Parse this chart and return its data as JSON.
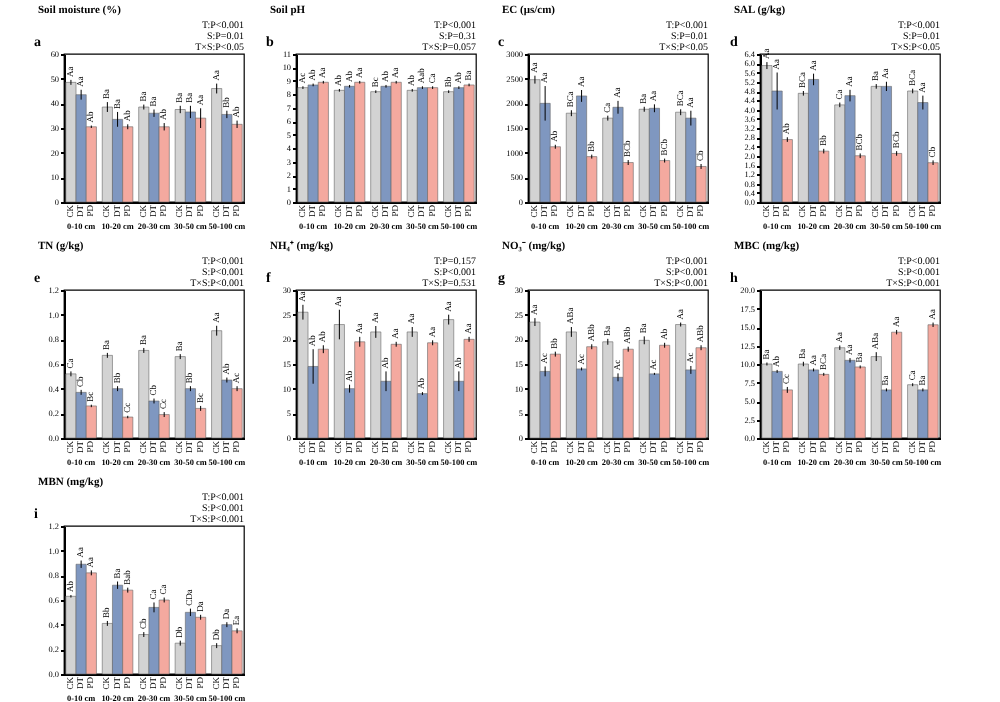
{
  "chart_data": [
    {
      "type": "bar",
      "title": "Soil moisture (%)",
      "annotations": [
        "a",
        "T:P<0.001",
        "S:P=0.01",
        "T×S:P<0.05"
      ],
      "categories": [
        "0-10 cm",
        "10-20 cm",
        "20-30 cm",
        "30-50 cm",
        "50-100 cm"
      ],
      "ylim": [
        0,
        60
      ],
      "yticks": [
        0,
        10,
        20,
        30,
        40,
        50,
        60
      ],
      "series": [
        {
          "name": "CK",
          "color": "#d3d3d3",
          "values": [
            48.5,
            38.5,
            38.5,
            37.5,
            46
          ],
          "errors": [
            1,
            2,
            1,
            1.5,
            2
          ],
          "value_labels": [
            "Aa",
            "Ba",
            "Ba",
            "Ba",
            "Aa"
          ]
        },
        {
          "name": "DT",
          "color": "#7f97c0",
          "values": [
            43.5,
            33.5,
            36,
            36.5,
            35.5
          ],
          "errors": [
            2,
            3,
            1.5,
            2.5,
            1.5
          ],
          "value_labels": [
            "Aa",
            "Ba",
            "Ba",
            "Ba",
            "Bb"
          ]
        },
        {
          "name": "PD",
          "color": "#f4a99f",
          "values": [
            30.5,
            30.5,
            30.5,
            34,
            31.5
          ],
          "errors": [
            0.5,
            1,
            1.5,
            4,
            1.5
          ],
          "value_labels": [
            "Ab",
            "Ab",
            "Ab",
            "Aa",
            "Ab"
          ]
        }
      ]
    },
    {
      "type": "bar",
      "title": "Soil pH",
      "annotations": [
        "b",
        "T:P<0.001",
        "S:P=0.31",
        "T×S:P=0.057"
      ],
      "categories": [
        "0-10 cm",
        "10-20 cm",
        "20-30 cm",
        "30-50 cm",
        "50-100 cm"
      ],
      "ylim": [
        0,
        11
      ],
      "yticks": [
        0,
        1,
        2,
        3,
        4,
        5,
        6,
        7,
        8,
        9,
        10,
        11
      ],
      "series": [
        {
          "name": "CK",
          "color": "#d3d3d3",
          "values": [
            8.5,
            8.3,
            8.2,
            8.3,
            8.2
          ],
          "errors": [
            0.1,
            0.1,
            0.1,
            0.1,
            0.1
          ],
          "value_labels": [
            "Ac",
            "Ab",
            "Bc",
            "Ab",
            "Bb"
          ]
        },
        {
          "name": "DT",
          "color": "#7f97c0",
          "values": [
            8.7,
            8.6,
            8.6,
            8.5,
            8.5
          ],
          "errors": [
            0.1,
            0.1,
            0.1,
            0.1,
            0.1
          ],
          "value_labels": [
            "Ab",
            "Ab",
            "Ab",
            "Aab",
            "Ab"
          ]
        },
        {
          "name": "PD",
          "color": "#f4a99f",
          "values": [
            8.9,
            8.9,
            8.9,
            8.5,
            8.7
          ],
          "errors": [
            0.1,
            0.1,
            0.1,
            0.1,
            0.1
          ],
          "value_labels": [
            "Aa",
            "Aa",
            "Aa",
            "Ca",
            "Ba"
          ]
        }
      ]
    },
    {
      "type": "bar",
      "title": "EC (μs/cm)",
      "annotations": [
        "c",
        "T:P<0.001",
        "S:P=0.01",
        "T×S:P<0.05"
      ],
      "categories": [
        "0-10 cm",
        "10-20 cm",
        "20-30 cm",
        "30-50 cm",
        "50-100 cm"
      ],
      "ylim": [
        0,
        3000
      ],
      "yticks": [
        0,
        500,
        1000,
        1500,
        2000,
        2500,
        3000
      ],
      "series": [
        {
          "name": "CK",
          "color": "#d3d3d3",
          "values": [
            2480,
            1800,
            1700,
            1880,
            1820
          ],
          "errors": [
            80,
            60,
            50,
            50,
            60
          ],
          "value_labels": [
            "Aa",
            "BCa",
            "Ca",
            "Ba",
            "BCa"
          ]
        },
        {
          "name": "DT",
          "color": "#7f97c0",
          "values": [
            2000,
            2150,
            1920,
            1900,
            1700
          ],
          "errors": [
            350,
            120,
            130,
            80,
            150
          ],
          "value_labels": [
            "Aa",
            "Aa",
            "Aa",
            "Aa",
            "Aa"
          ]
        },
        {
          "name": "PD",
          "color": "#f4a99f",
          "values": [
            1120,
            920,
            800,
            840,
            720
          ],
          "errors": [
            40,
            40,
            50,
            40,
            50
          ],
          "value_labels": [
            "Ab",
            "Bb",
            "BCb",
            "BCb",
            "Cb"
          ]
        }
      ]
    },
    {
      "type": "bar",
      "title": "SAL (g/kg)",
      "annotations": [
        "d",
        "T:P<0.001",
        "S:P=0.01",
        "T×S:P<0.05"
      ],
      "categories": [
        "0-10 cm",
        "10-20 cm",
        "20-30 cm",
        "30-50 cm",
        "50-100 cm"
      ],
      "ylim": [
        0,
        6.4
      ],
      "yticks": [
        {
          "value": 0,
          "label": "0.0"
        },
        0.4,
        0.8,
        1.2,
        1.6,
        {
          "value": 2,
          "label": "2.0"
        },
        2.4,
        2.8,
        3.2,
        3.6,
        {
          "value": 4,
          "label": "4.0"
        },
        4.4,
        4.8,
        5.2,
        5.6,
        {
          "value": 6,
          "label": "6.0"
        },
        6.4
      ],
      "series": [
        {
          "name": "CK",
          "color": "#d3d3d3",
          "values": [
            5.9,
            4.7,
            4.2,
            5.0,
            4.8
          ],
          "errors": [
            0.15,
            0.1,
            0.1,
            0.1,
            0.1
          ],
          "value_labels": [
            "Aa",
            "BCa",
            "Ca",
            "Ba",
            "BCa"
          ]
        },
        {
          "name": "DT",
          "color": "#7f97c0",
          "values": [
            4.8,
            5.3,
            4.6,
            5.0,
            4.3
          ],
          "errors": [
            0.8,
            0.25,
            0.25,
            0.2,
            0.3
          ],
          "value_labels": [
            "Aa",
            "Aa",
            "Aa",
            "Aa",
            "Aa"
          ]
        },
        {
          "name": "PD",
          "color": "#f4a99f",
          "values": [
            2.7,
            2.2,
            2.0,
            2.1,
            1.7
          ],
          "errors": [
            0.1,
            0.1,
            0.1,
            0.1,
            0.1
          ],
          "value_labels": [
            "Ab",
            "Bb",
            "BCb",
            "BCb",
            "Cb"
          ]
        }
      ]
    },
    {
      "type": "bar",
      "title": "TN (g/kg)",
      "annotations": [
        "e",
        "T:P<0.001",
        "S:P<0.001",
        "T×S:P<0.001"
      ],
      "categories": [
        "0-10 cm",
        "10-20 cm",
        "20-30 cm",
        "30-50 cm",
        "50-100 cm"
      ],
      "ylim": [
        0,
        1.2
      ],
      "yticks": [
        {
          "value": 0,
          "label": "0.0"
        },
        0.2,
        0.4,
        0.6,
        0.8,
        {
          "value": 1,
          "label": "1.0"
        },
        1.2
      ],
      "series": [
        {
          "name": "CK",
          "color": "#d3d3d3",
          "values": [
            0.52,
            0.67,
            0.71,
            0.66,
            0.87
          ],
          "errors": [
            0.02,
            0.02,
            0.02,
            0.02,
            0.04
          ],
          "value_labels": [
            "Ca",
            "Ba",
            "Ba",
            "Ba",
            "Aa"
          ]
        },
        {
          "name": "DT",
          "color": "#7f97c0",
          "values": [
            0.37,
            0.4,
            0.3,
            0.4,
            0.47
          ],
          "errors": [
            0.02,
            0.02,
            0.02,
            0.02,
            0.02
          ],
          "value_labels": [
            "Cb",
            "Bb",
            "Cb",
            "Bb",
            "Ab"
          ]
        },
        {
          "name": "PD",
          "color": "#f4a99f",
          "values": [
            0.26,
            0.17,
            0.19,
            0.24,
            0.4
          ],
          "errors": [
            0.01,
            0.01,
            0.02,
            0.02,
            0.02
          ],
          "value_labels": [
            "Bc",
            "Cc",
            "Cc",
            "Bc",
            "Ac"
          ]
        }
      ]
    },
    {
      "type": "bar",
      "title": "NH₄⁺ (mg/kg)",
      "annotations": [
        "f",
        "T:P=0.157",
        "S:P<0.001",
        "T×S:P=0.531"
      ],
      "categories": [
        "0-10 cm",
        "10-20 cm",
        "20-30 cm",
        "30-50 cm",
        "50-100 cm"
      ],
      "ylim": [
        0,
        30
      ],
      "yticks": [
        0,
        5,
        10,
        15,
        20,
        25,
        30
      ],
      "series": [
        {
          "name": "CK",
          "color": "#d3d3d3",
          "values": [
            25.5,
            23,
            21.5,
            21.5,
            24
          ],
          "errors": [
            1.5,
            3,
            1.2,
            1,
            1
          ],
          "value_labels": [
            "Aa",
            "Aa",
            "Aa",
            "Aa",
            "Aa"
          ]
        },
        {
          "name": "DT",
          "color": "#7f97c0",
          "values": [
            14.5,
            10,
            11.5,
            9,
            11.5
          ],
          "errors": [
            3.5,
            0.8,
            2,
            0.3,
            2
          ],
          "value_labels": [
            "Ab",
            "Ab",
            "Ab",
            "Ab",
            "Ab"
          ]
        },
        {
          "name": "PD",
          "color": "#f4a99f",
          "values": [
            18,
            19.5,
            19,
            19.3,
            20
          ],
          "errors": [
            0.8,
            1,
            0.5,
            0.5,
            0.5
          ],
          "value_labels": [
            "Ab",
            "Aa",
            "Aa",
            "Aa",
            "Aa"
          ]
        }
      ]
    },
    {
      "type": "bar",
      "title": "NO₃⁻ (mg/kg)",
      "annotations": [
        "g",
        "T:P<0.001",
        "S:P<0.001",
        "T×S:P<0.001"
      ],
      "categories": [
        "0-10 cm",
        "10-20 cm",
        "20-30 cm",
        "30-50 cm",
        "50-100 cm"
      ],
      "ylim": [
        0,
        30
      ],
      "yticks": [
        0,
        5,
        10,
        15,
        20,
        25,
        30
      ],
      "series": [
        {
          "name": "CK",
          "color": "#d3d3d3",
          "values": [
            23.5,
            21.5,
            19.5,
            19.8,
            23
          ],
          "errors": [
            0.8,
            1,
            0.6,
            0.8,
            0.4
          ],
          "value_labels": [
            "Aa",
            "ABa",
            "Ba",
            "Ba",
            "Aa"
          ]
        },
        {
          "name": "DT",
          "color": "#7f97c0",
          "values": [
            13.5,
            14,
            12.3,
            13,
            13.8
          ],
          "errors": [
            1,
            0.3,
            0.8,
            0.2,
            0.8
          ],
          "value_labels": [
            "Ac",
            "Ac",
            "Ac",
            "Ac",
            "Ac"
          ]
        },
        {
          "name": "PD",
          "color": "#f4a99f",
          "values": [
            17,
            18.5,
            18,
            18.8,
            18.3
          ],
          "errors": [
            0.5,
            0.5,
            0.5,
            0.5,
            0.5
          ],
          "value_labels": [
            "Bb",
            "ABb",
            "ABb",
            "Ab",
            "ABb"
          ]
        }
      ]
    },
    {
      "type": "bar",
      "title": "MBC (mg/kg)",
      "annotations": [
        "h",
        "T:P<0.001",
        "S:P<0.001",
        "T×S:P<0.001"
      ],
      "categories": [
        "0-10 cm",
        "10-20 cm",
        "20-30 cm",
        "30-50 cm",
        "50-100 cm"
      ],
      "ylim": [
        0,
        20
      ],
      "yticks": [
        {
          "value": 0,
          "label": "0.0"
        },
        2.5,
        {
          "value": 5,
          "label": "5.0"
        },
        7.5,
        {
          "value": 10,
          "label": "10.0"
        },
        12.5,
        {
          "value": 15,
          "label": "15.0"
        },
        17.5,
        {
          "value": 20,
          "label": "20.0"
        }
      ],
      "series": [
        {
          "name": "CK",
          "color": "#d3d3d3",
          "values": [
            10,
            10,
            12.2,
            11,
            7.2
          ],
          "errors": [
            0.2,
            0.3,
            0.3,
            0.6,
            0.2
          ],
          "value_labels": [
            "Ba",
            "Ba",
            "Aa",
            "ABa",
            "Ca"
          ]
        },
        {
          "name": "DT",
          "color": "#7f97c0",
          "values": [
            9,
            9.2,
            10.5,
            6.5,
            6.5
          ],
          "errors": [
            0.2,
            0.2,
            0.3,
            0.2,
            0.2
          ],
          "value_labels": [
            "Ab",
            "Aa",
            "Aa",
            "Ba",
            "Ba"
          ]
        },
        {
          "name": "PD",
          "color": "#f4a99f",
          "values": [
            6.5,
            8.6,
            9.6,
            14.3,
            15.3
          ],
          "errors": [
            0.4,
            0.2,
            0.2,
            0.3,
            0.3
          ],
          "value_labels": [
            "Cc",
            "BCa",
            "Ba",
            "Aa",
            "Aa"
          ]
        }
      ]
    },
    {
      "type": "bar",
      "title": "MBN (mg/kg)",
      "annotations": [
        "i",
        "T:P<0.001",
        "S:P<0.001",
        "T×S:P<0.001"
      ],
      "categories": [
        "0-10 cm",
        "10-20 cm",
        "20-30 cm",
        "30-50 cm",
        "50-100 cm"
      ],
      "ylim": [
        0,
        1.2
      ],
      "yticks": [
        {
          "value": 0,
          "label": "0.0"
        },
        0.2,
        0.4,
        0.6,
        0.8,
        {
          "value": 1,
          "label": "1.0"
        },
        1.2
      ],
      "series": [
        {
          "name": "CK",
          "color": "#d3d3d3",
          "values": [
            0.63,
            0.41,
            0.32,
            0.25,
            0.23
          ],
          "errors": [
            0.01,
            0.02,
            0.02,
            0.02,
            0.02
          ],
          "value_labels": [
            "Ab",
            "Bb",
            "Cb",
            "Db",
            "Db"
          ]
        },
        {
          "name": "DT",
          "color": "#7f97c0",
          "values": [
            0.89,
            0.72,
            0.54,
            0.5,
            0.4
          ],
          "errors": [
            0.03,
            0.03,
            0.04,
            0.03,
            0.02
          ],
          "value_labels": [
            "Aa",
            "Ba",
            "Ca",
            "CDa",
            "Da"
          ]
        },
        {
          "name": "PD",
          "color": "#f4a99f",
          "values": [
            0.82,
            0.68,
            0.6,
            0.46,
            0.35
          ],
          "errors": [
            0.02,
            0.02,
            0.02,
            0.02,
            0.02
          ],
          "value_labels": [
            "Aa",
            "Bab",
            "Ca",
            "Da",
            "Ea"
          ]
        }
      ]
    }
  ]
}
